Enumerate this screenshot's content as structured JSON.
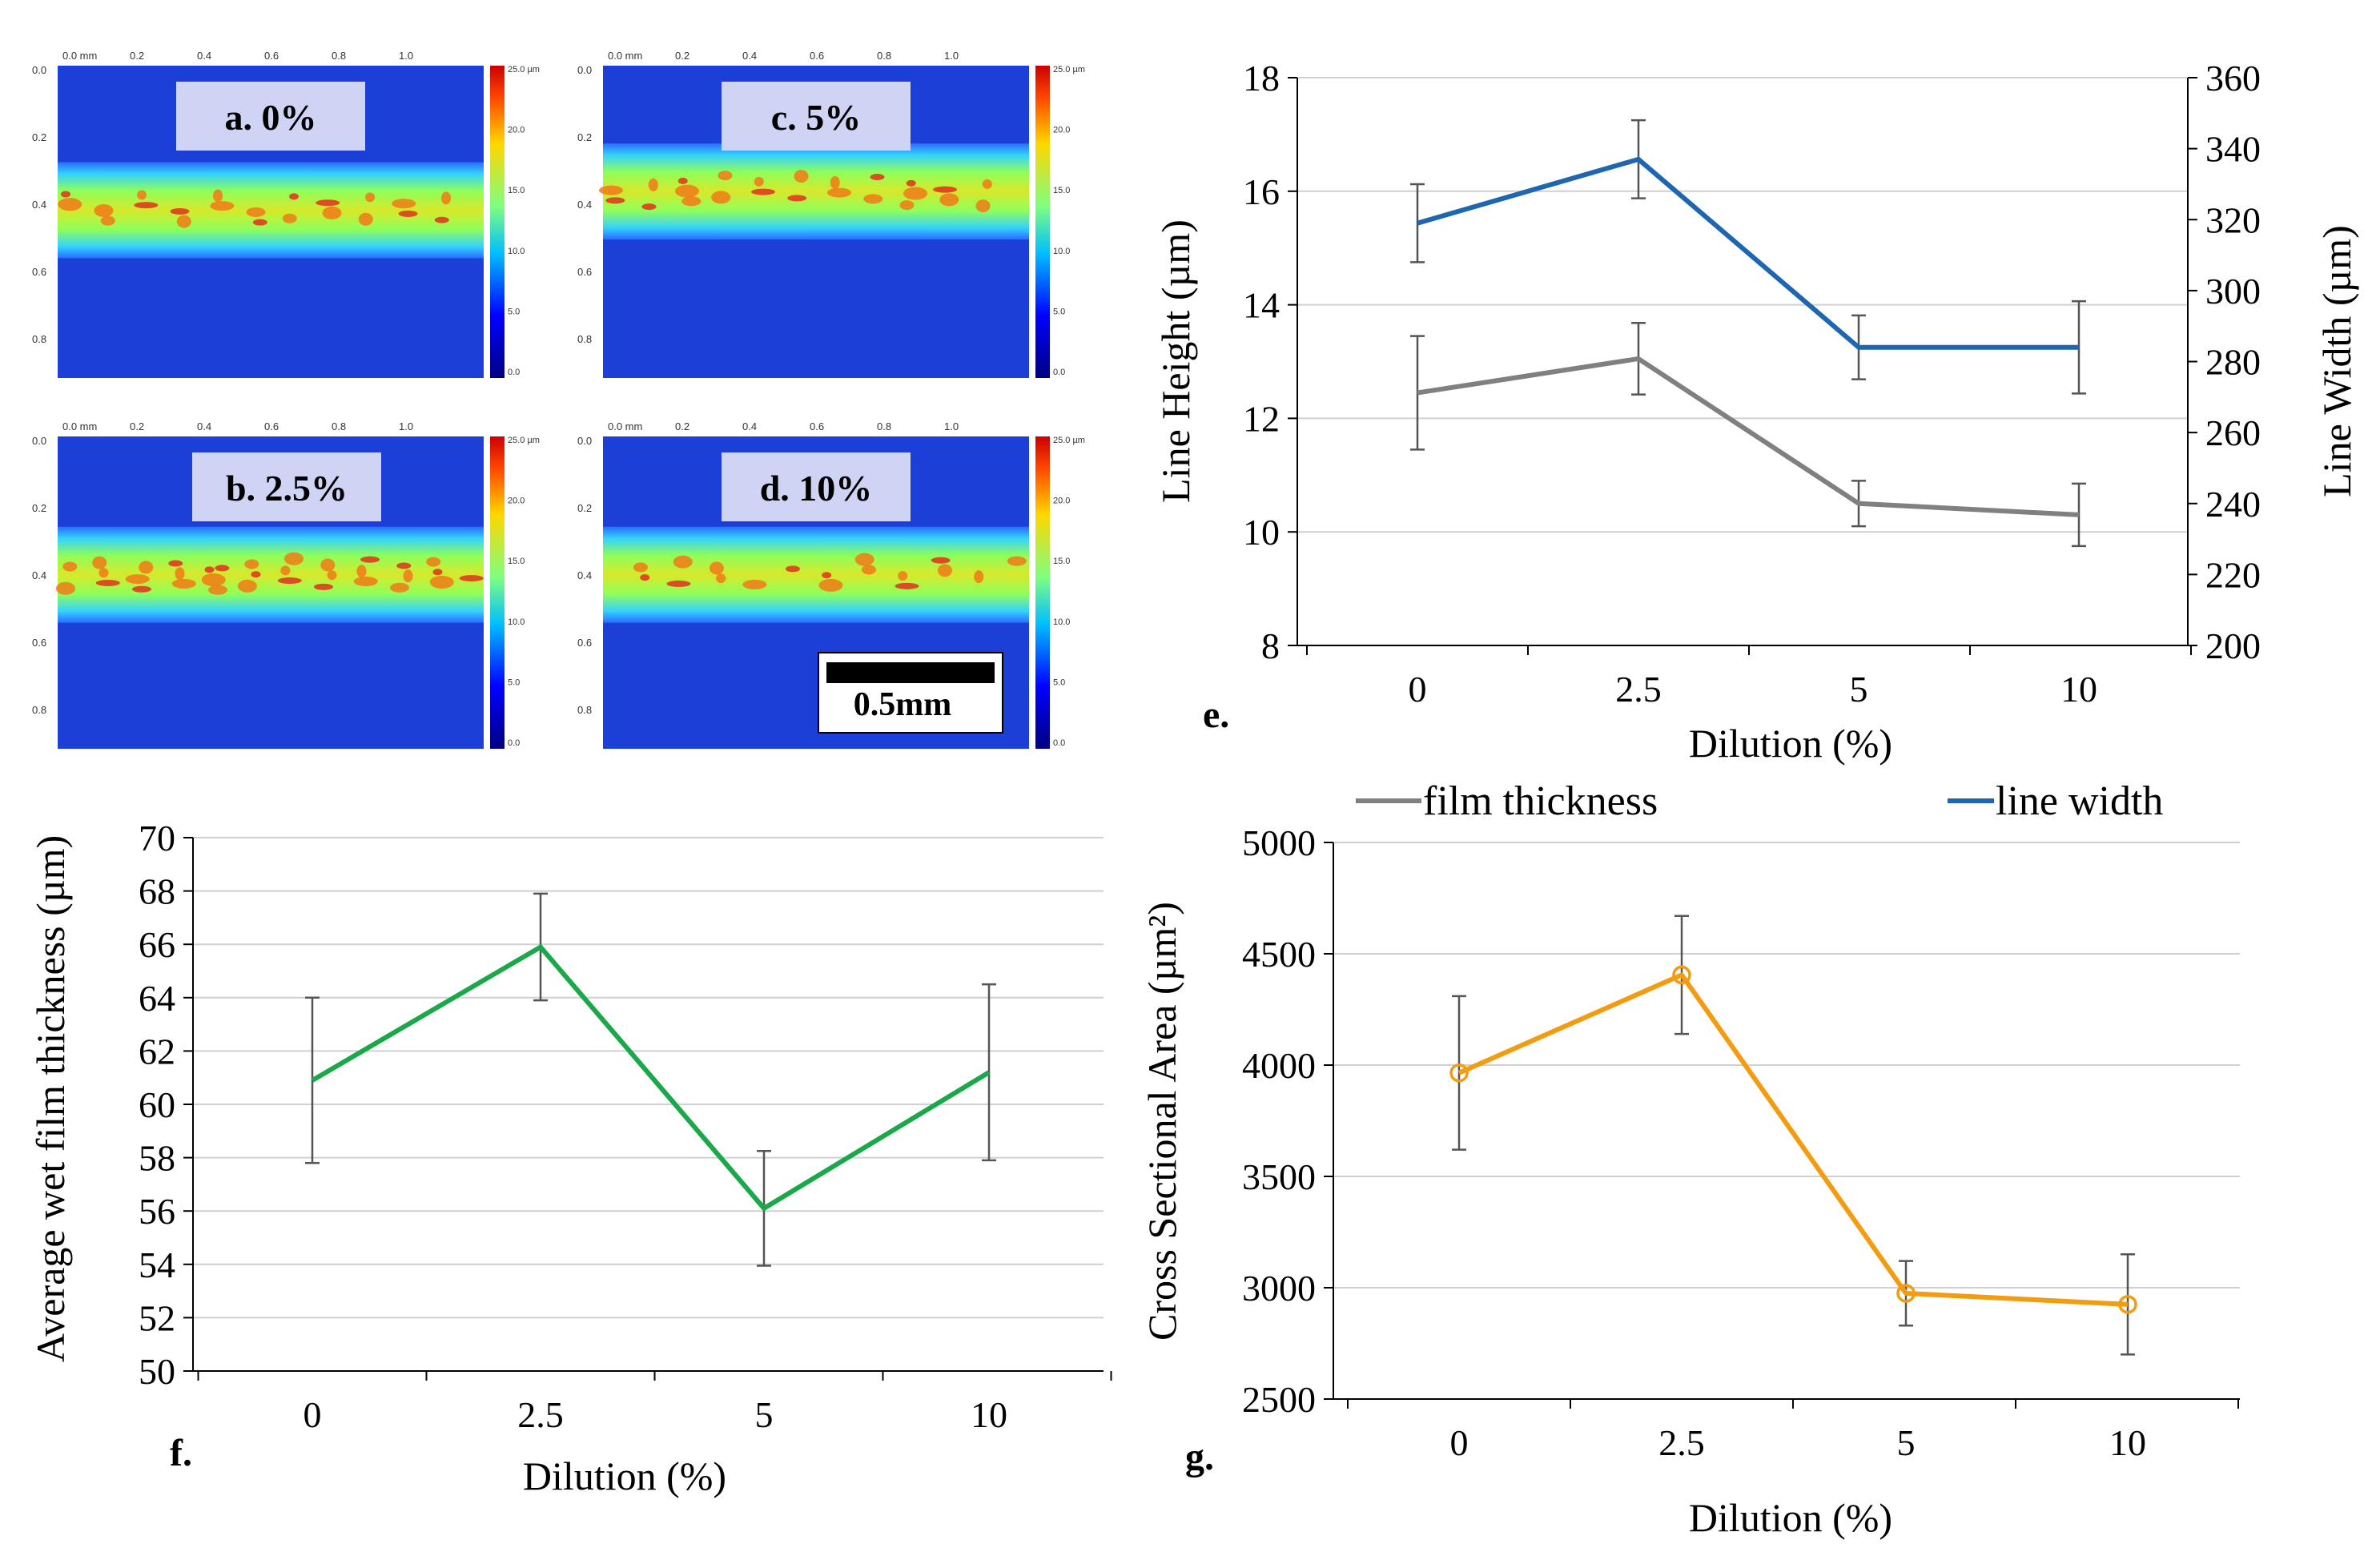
{
  "maps": [
    {
      "label": "a. 0%",
      "intensity": 0.55
    },
    {
      "label": "c. 5%",
      "intensity": 0.6
    },
    {
      "label": "b. 2.5%",
      "intensity": 0.85
    },
    {
      "label": "d. 10%",
      "intensity": 0.45
    }
  ],
  "map_axis": {
    "top_ticks": [
      "0.0 mm",
      "0.2",
      "0.4",
      "0.6",
      "0.8",
      "1.0"
    ],
    "left_ticks": [
      "0.0",
      "0.2",
      "0.4",
      "0.6",
      "0.8"
    ],
    "colorbar_ticks": [
      "25.0 µm",
      "20.0",
      "15.0",
      "10.0",
      "5.0",
      "0.0"
    ]
  },
  "scale_bar_label": "0.5mm",
  "colors": {
    "film_thickness": "#808080",
    "line_width": "#1f66b0",
    "wet_film": "#1aa84a",
    "cross_section": "#f39c12",
    "grid": "#d0d0d0"
  },
  "chart_data": [
    {
      "id": "e",
      "panel_label": "e.",
      "type": "line",
      "categories": [
        "0",
        "2.5",
        "5",
        "10"
      ],
      "xlabel": "Dilution (%)",
      "ylabel": "Line Height (µm)",
      "y2label": "Line Width (µm)",
      "ylim": [
        8,
        18
      ],
      "y_ticks": [
        "8",
        "10",
        "12",
        "14",
        "16",
        "18"
      ],
      "y2lim": [
        200,
        360
      ],
      "y2_ticks": [
        "200",
        "220",
        "240",
        "260",
        "280",
        "300",
        "320",
        "340",
        "360"
      ],
      "series": [
        {
          "name": "film thickness",
          "axis": "left",
          "values": [
            12.45,
            13.05,
            10.5,
            10.3
          ],
          "errors": [
            1.0,
            0.63,
            0.4,
            0.55
          ]
        },
        {
          "name": "line width",
          "axis": "right",
          "values": [
            319,
            337,
            284,
            284
          ],
          "errors": [
            11,
            11,
            9,
            13
          ]
        }
      ],
      "legend": [
        "film thickness",
        "line width"
      ]
    },
    {
      "id": "f",
      "panel_label": "f.",
      "type": "line",
      "categories": [
        "0",
        "2.5",
        "5",
        "10"
      ],
      "xlabel": "Dilution (%)",
      "ylabel": "Average wet film thickness (µm)",
      "ylim": [
        50,
        70
      ],
      "y_ticks": [
        "50",
        "52",
        "54",
        "56",
        "58",
        "60",
        "62",
        "64",
        "66",
        "68",
        "70"
      ],
      "series": [
        {
          "name": "wet film thickness",
          "values": [
            60.9,
            65.9,
            56.1,
            61.2
          ],
          "errors": [
            3.1,
            2.0,
            2.15,
            3.3
          ]
        }
      ]
    },
    {
      "id": "g",
      "panel_label": "g.",
      "type": "line",
      "categories": [
        "0",
        "2.5",
        "5",
        "10"
      ],
      "xlabel": "Dilution (%)",
      "ylabel": "Cross Sectional Area (µm²)",
      "ylim": [
        2500,
        5000
      ],
      "y_ticks": [
        "2500",
        "3000",
        "3500",
        "4000",
        "4500",
        "5000"
      ],
      "series": [
        {
          "name": "cross sectional area",
          "values": [
            3965,
            4405,
            2975,
            2925
          ],
          "errors": [
            345,
            265,
            145,
            225
          ]
        }
      ]
    }
  ]
}
